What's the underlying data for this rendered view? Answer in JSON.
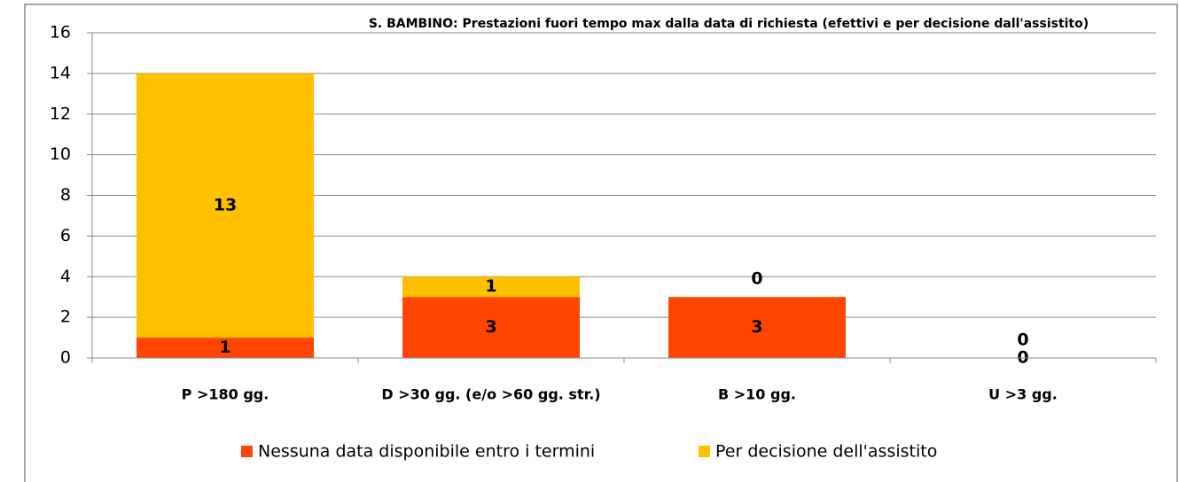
{
  "chart_data": {
    "type": "stacked_bar",
    "title": "S. BAMBINO: Prestazioni fuori tempo max dalla data di richiesta (efettivi e per decisione dall'assistito)",
    "categories": [
      "P >180 gg.",
      "D >30 gg. (e/o >60 gg. str.)",
      "B >10 gg.",
      "U >3 gg."
    ],
    "series": [
      {
        "name": "Nessuna data disponibile entro i termini",
        "color": "#ff4500",
        "values": [
          1,
          3,
          3,
          0
        ]
      },
      {
        "name": "Per decisione dell'assistito",
        "color": "#ffc000",
        "values": [
          13,
          1,
          0,
          0
        ]
      }
    ],
    "ylim": [
      0,
      16
    ],
    "yticks": [
      0,
      2,
      4,
      6,
      8,
      10,
      12,
      14,
      16
    ],
    "grid": true,
    "legend": "bottom"
  }
}
